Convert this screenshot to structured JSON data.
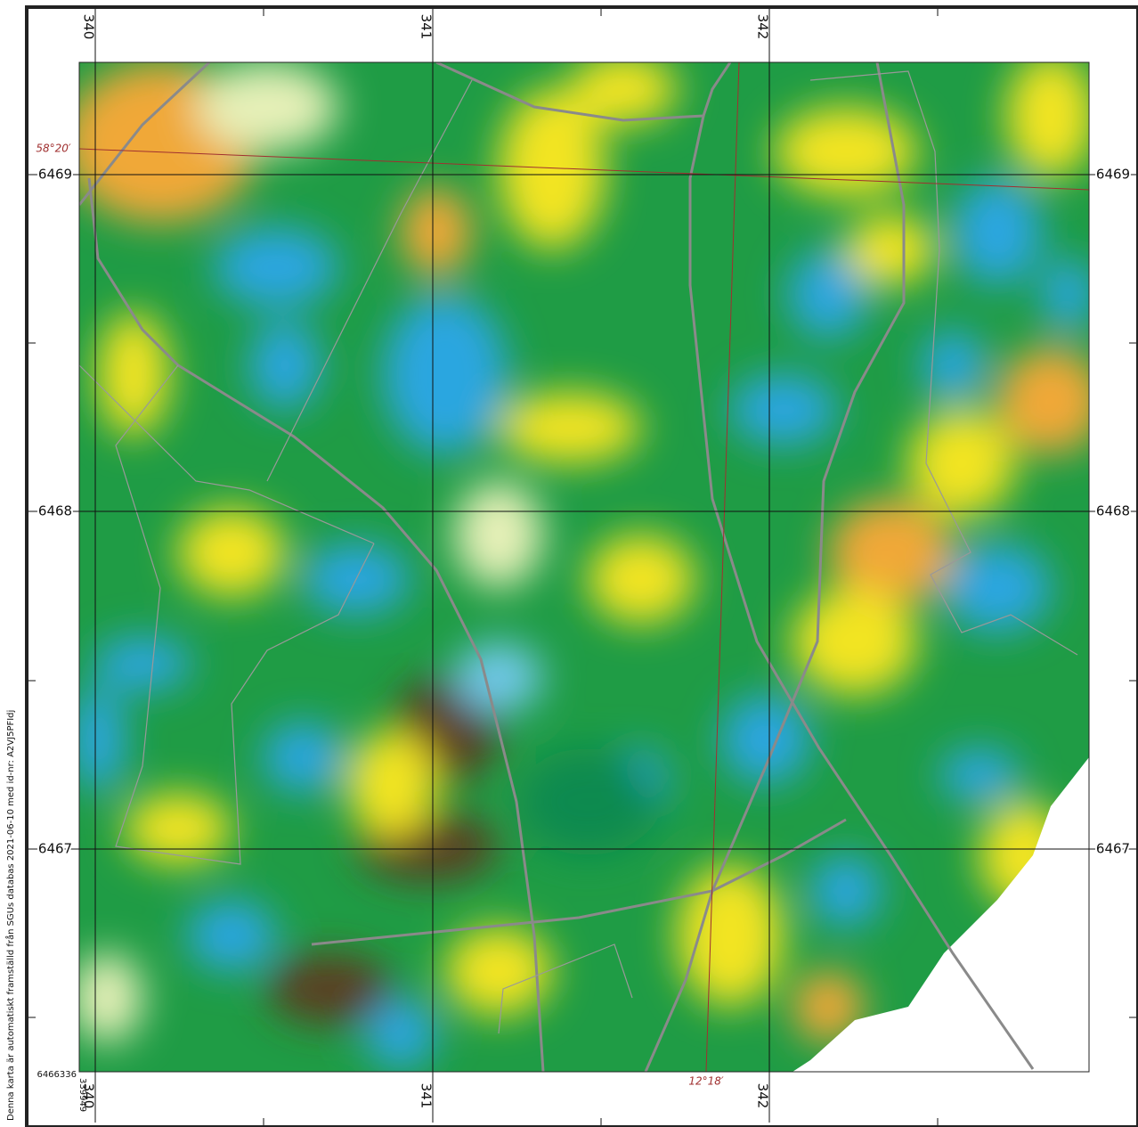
{
  "map": {
    "easting_top": [
      "340",
      "341",
      "342"
    ],
    "easting_bottom": [
      "340",
      "341",
      "342"
    ],
    "northing_left": [
      "6469",
      "6468",
      "6467"
    ],
    "northing_right": [
      "6469",
      "6468",
      "6467"
    ],
    "latitude_label": "58°20′",
    "longitude_label": "12°18′",
    "corner_northing": "6466336",
    "corner_easting": "339949",
    "credit": "Denna karta är automatiskt framställd från SGUs databas 2021-06-10 med id-nr: A2VJ5PFIdj"
  }
}
